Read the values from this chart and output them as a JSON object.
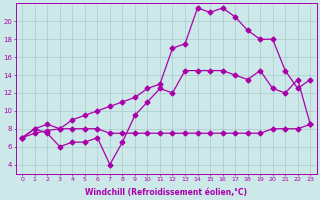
{
  "xlabel": "Windchill (Refroidissement éolien,°C)",
  "bg_color": "#cce8e8",
  "grid_color": "#aacccc",
  "line_color": "#aa00aa",
  "series1_x": [
    0,
    1,
    2,
    3,
    4,
    5,
    6,
    7,
    8,
    9,
    10,
    11,
    12,
    13,
    14,
    15,
    16,
    17,
    18,
    19,
    20,
    21,
    22,
    23
  ],
  "series1_y": [
    7.0,
    7.5,
    7.8,
    8.0,
    8.0,
    8.0,
    8.0,
    7.5,
    7.5,
    7.5,
    7.5,
    7.5,
    7.5,
    7.5,
    7.5,
    7.5,
    7.5,
    7.5,
    7.5,
    7.5,
    8.0,
    8.0,
    8.0,
    8.5
  ],
  "series2_x": [
    0,
    1,
    2,
    3,
    4,
    5,
    6,
    7,
    8,
    9,
    10,
    11,
    12,
    13,
    14,
    15,
    16,
    17,
    18,
    19,
    20,
    21,
    22,
    23
  ],
  "series2_y": [
    7.0,
    8.0,
    7.5,
    6.0,
    6.5,
    6.5,
    7.0,
    4.0,
    6.5,
    9.5,
    11.0,
    12.5,
    12.0,
    14.5,
    14.5,
    14.5,
    14.5,
    14.0,
    13.5,
    14.5,
    12.5,
    12.0,
    13.5,
    8.5
  ],
  "series3_x": [
    0,
    1,
    2,
    3,
    4,
    5,
    6,
    7,
    8,
    9,
    10,
    11,
    12,
    13,
    14,
    15,
    16,
    17,
    18,
    19,
    20,
    21,
    22,
    23
  ],
  "series3_y": [
    7.0,
    8.0,
    8.5,
    8.0,
    9.0,
    9.5,
    10.0,
    10.5,
    11.0,
    11.5,
    12.5,
    13.0,
    17.0,
    17.5,
    21.5,
    21.0,
    21.5,
    20.5,
    19.0,
    18.0,
    18.0,
    14.5,
    12.5,
    13.5
  ],
  "ylim": [
    3,
    22
  ],
  "xlim": [
    -0.5,
    23.5
  ],
  "yticks": [
    4,
    6,
    8,
    10,
    12,
    14,
    16,
    18,
    20
  ],
  "xticks": [
    0,
    1,
    2,
    3,
    4,
    5,
    6,
    7,
    8,
    9,
    10,
    11,
    12,
    13,
    14,
    15,
    16,
    17,
    18,
    19,
    20,
    21,
    22,
    23
  ],
  "tick_fontsize": 4.5,
  "label_fontsize": 5.5
}
